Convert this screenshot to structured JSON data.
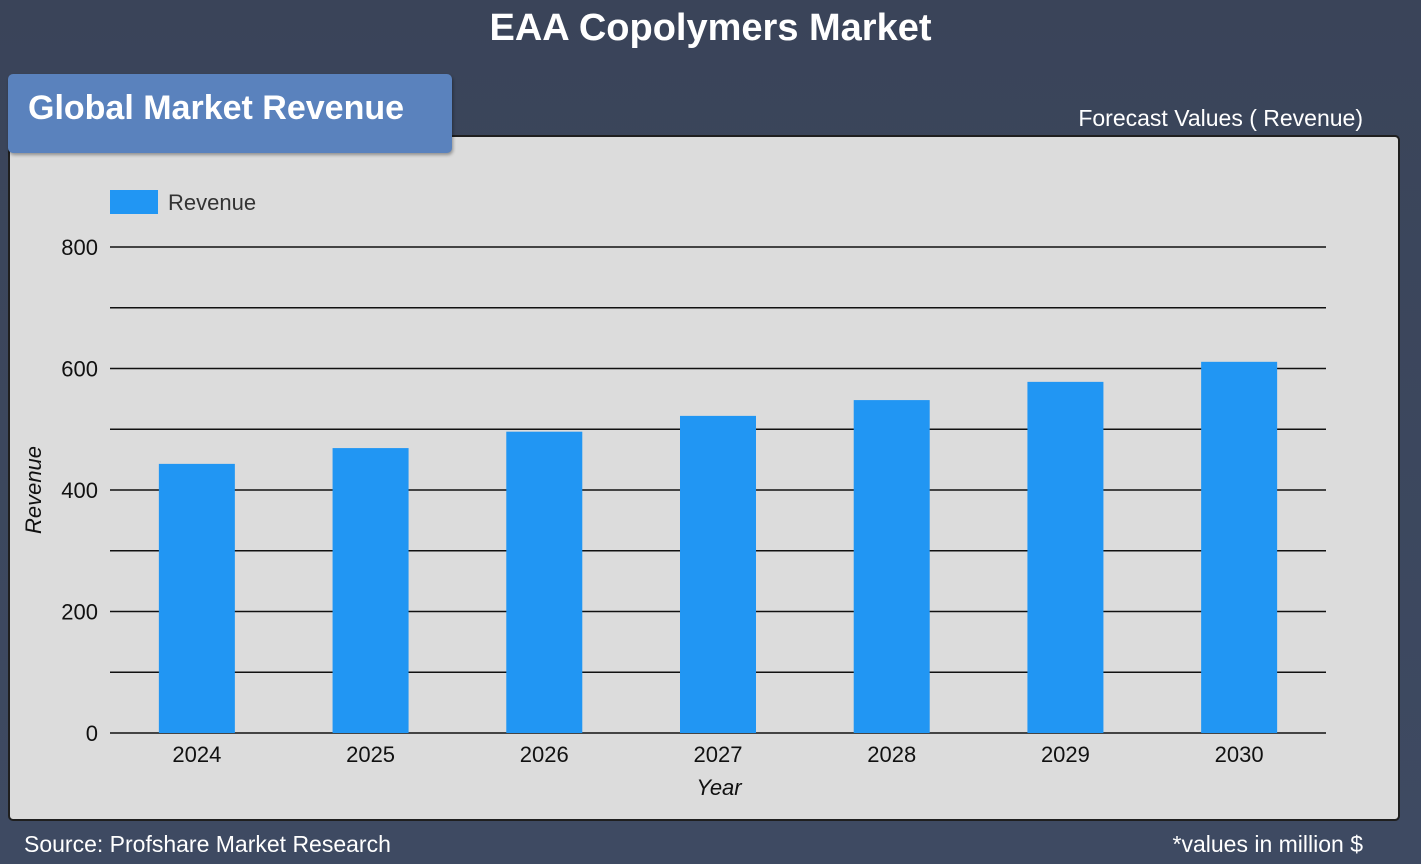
{
  "header": {
    "title": "EAA Copolymers Market"
  },
  "badge": {
    "label": "Global Market Revenue"
  },
  "forecast_label": "Forecast Values ( Revenue)",
  "footer": {
    "source": "Source: Profshare Market Research",
    "note": "*values in million $"
  },
  "colors": {
    "background": "#3b465c",
    "panel": "#dcdcdc",
    "badge": "#5a82bd",
    "bar": "#2196f3"
  },
  "chart_data": {
    "type": "bar",
    "categories": [
      "2024",
      "2025",
      "2026",
      "2027",
      "2028",
      "2029",
      "2030"
    ],
    "series": [
      {
        "name": "Revenue",
        "color": "#2196f3",
        "values": [
          443,
          469,
          496,
          522,
          548,
          578,
          611
        ]
      }
    ],
    "xlabel": "Year",
    "ylabel": "Revenue",
    "ylim": [
      0,
      800
    ],
    "yticks": [
      0,
      200,
      400,
      600,
      800
    ],
    "gridlines": [
      0,
      100,
      200,
      300,
      400,
      500,
      600,
      700,
      800
    ],
    "grid": true,
    "legend": "top-left"
  }
}
